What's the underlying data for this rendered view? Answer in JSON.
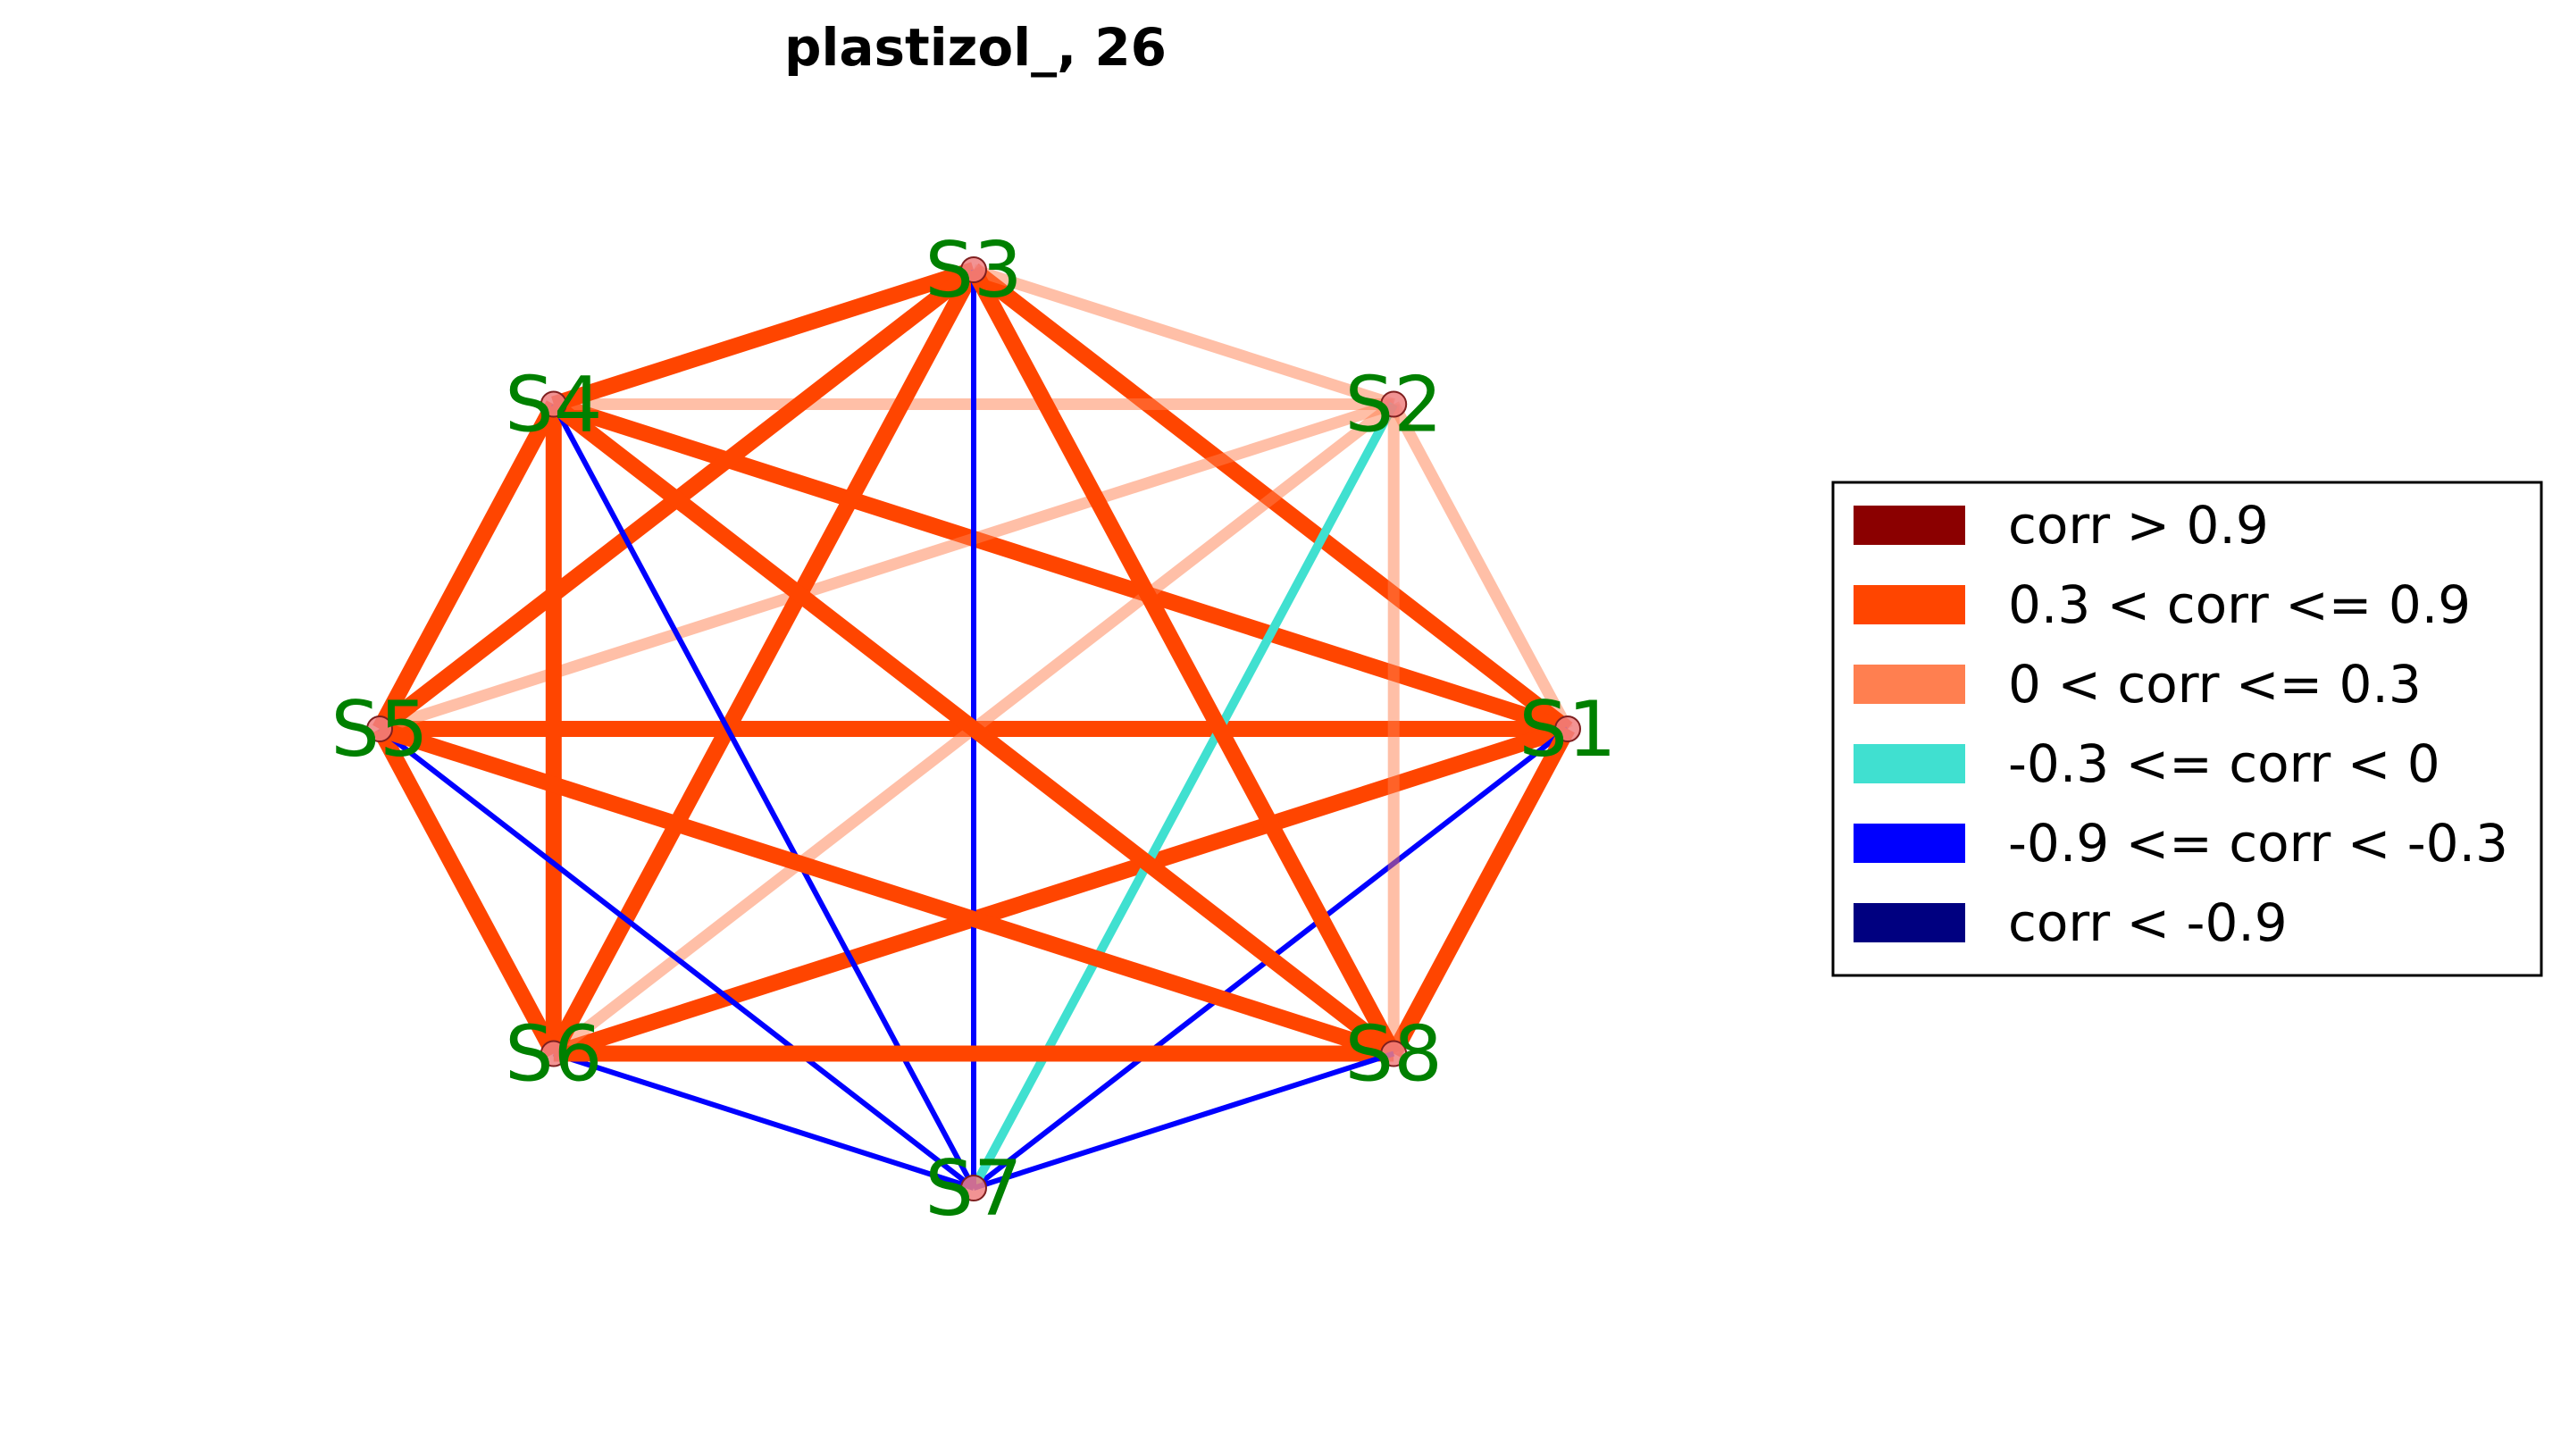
{
  "title": "plastizol_, 26",
  "nodes": [
    {
      "id": "S1",
      "label": "S1"
    },
    {
      "id": "S2",
      "label": "S2"
    },
    {
      "id": "S3",
      "label": "S3"
    },
    {
      "id": "S4",
      "label": "S4"
    },
    {
      "id": "S5",
      "label": "S5"
    },
    {
      "id": "S6",
      "label": "S6"
    },
    {
      "id": "S7",
      "label": "S7"
    },
    {
      "id": "S8",
      "label": "S8"
    }
  ],
  "categories": {
    "strong_pos": {
      "label": "corr > 0.9",
      "color": "#8b0000"
    },
    "mod_pos": {
      "label": "0.3 < corr <= 0.9",
      "color": "#ff4500"
    },
    "weak_pos": {
      "label": "0 < corr <= 0.3",
      "color": "#ff7f50"
    },
    "weak_neg": {
      "label": "-0.3 <= corr < 0",
      "color": "#40e0d0"
    },
    "mod_neg": {
      "label": "-0.9 <= corr < -0.3",
      "color": "#0000ff"
    },
    "strong_neg": {
      "label": "corr < -0.9",
      "color": "#000080"
    }
  },
  "legend_order": [
    "strong_pos",
    "mod_pos",
    "weak_pos",
    "weak_neg",
    "mod_neg",
    "strong_neg"
  ],
  "edges": [
    {
      "source": "S1",
      "target": "S2",
      "category": "weak_pos"
    },
    {
      "source": "S1",
      "target": "S3",
      "category": "mod_pos"
    },
    {
      "source": "S1",
      "target": "S4",
      "category": "mod_pos"
    },
    {
      "source": "S1",
      "target": "S5",
      "category": "mod_pos"
    },
    {
      "source": "S1",
      "target": "S6",
      "category": "mod_pos"
    },
    {
      "source": "S1",
      "target": "S7",
      "category": "mod_neg"
    },
    {
      "source": "S1",
      "target": "S8",
      "category": "mod_pos"
    },
    {
      "source": "S2",
      "target": "S3",
      "category": "weak_pos"
    },
    {
      "source": "S2",
      "target": "S4",
      "category": "weak_pos"
    },
    {
      "source": "S2",
      "target": "S5",
      "category": "weak_pos"
    },
    {
      "source": "S2",
      "target": "S6",
      "category": "weak_pos"
    },
    {
      "source": "S2",
      "target": "S7",
      "category": "weak_neg"
    },
    {
      "source": "S2",
      "target": "S8",
      "category": "weak_pos"
    },
    {
      "source": "S3",
      "target": "S4",
      "category": "mod_pos"
    },
    {
      "source": "S3",
      "target": "S5",
      "category": "mod_pos"
    },
    {
      "source": "S3",
      "target": "S6",
      "category": "mod_pos"
    },
    {
      "source": "S3",
      "target": "S7",
      "category": "mod_neg"
    },
    {
      "source": "S3",
      "target": "S8",
      "category": "mod_pos"
    },
    {
      "source": "S4",
      "target": "S5",
      "category": "mod_pos"
    },
    {
      "source": "S4",
      "target": "S6",
      "category": "mod_pos"
    },
    {
      "source": "S4",
      "target": "S7",
      "category": "mod_neg"
    },
    {
      "source": "S4",
      "target": "S8",
      "category": "mod_pos"
    },
    {
      "source": "S5",
      "target": "S6",
      "category": "mod_pos"
    },
    {
      "source": "S5",
      "target": "S7",
      "category": "mod_neg"
    },
    {
      "source": "S5",
      "target": "S8",
      "category": "mod_pos"
    },
    {
      "source": "S6",
      "target": "S7",
      "category": "mod_neg"
    },
    {
      "source": "S6",
      "target": "S8",
      "category": "mod_pos"
    },
    {
      "source": "S7",
      "target": "S8",
      "category": "mod_neg"
    }
  ]
}
